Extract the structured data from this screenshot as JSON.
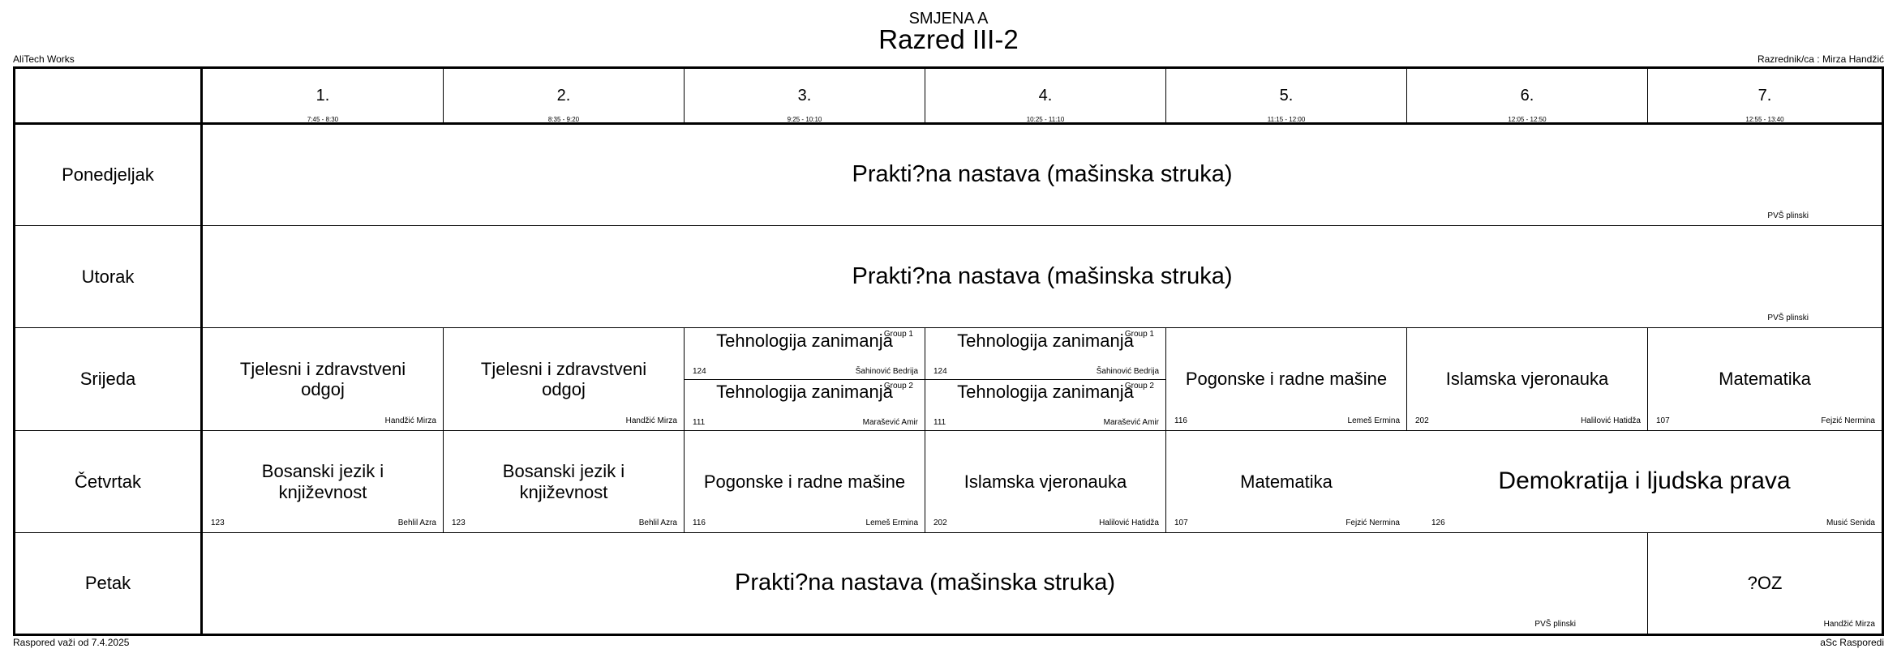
{
  "header": {
    "shift": "SMJENA A",
    "class_name": "Razred III-2",
    "school": "AliTech Works",
    "class_teacher": "Razrednik/ca : Mirza Handžić"
  },
  "footer": {
    "valid_from": "Raspored važi od 7.4.2025",
    "generator": "aSc Rasporedi"
  },
  "periods": [
    {
      "num": "1.",
      "time": "7:45 - 8:30"
    },
    {
      "num": "2.",
      "time": "8:35 - 9:20"
    },
    {
      "num": "3.",
      "time": "9:25 - 10:10"
    },
    {
      "num": "4.",
      "time": "10:25 - 11:10"
    },
    {
      "num": "5.",
      "time": "11:15 - 12:00"
    },
    {
      "num": "6.",
      "time": "12:05 - 12:50"
    },
    {
      "num": "7.",
      "time": "12:55 - 13:40"
    }
  ],
  "days": [
    "Ponedjeljak",
    "Utorak",
    "Srijeda",
    "Četvrtak",
    "Petak"
  ],
  "lessons": {
    "mon": {
      "subject": "Prakti?na nastava (mašinska struka)",
      "teacher": "PVŠ plinski"
    },
    "tue": {
      "subject": "Prakti?na nastava (mašinska struka)",
      "teacher": "PVŠ plinski"
    },
    "wed": {
      "p1": {
        "subject": "Tjelesni i zdravstveni odgoj",
        "teacher": "Handžić Mirza"
      },
      "p2": {
        "subject": "Tjelesni i zdravstveni odgoj",
        "teacher": "Handžić Mirza"
      },
      "p3g1": {
        "subject": "Tehnologija zanimanja",
        "group": "Group 1",
        "room": "124",
        "teacher": "Šahinović Bedrija"
      },
      "p3g2": {
        "subject": "Tehnologija zanimanja",
        "group": "Group 2",
        "room": "111",
        "teacher": "Marašević Amir"
      },
      "p4g1": {
        "subject": "Tehnologija zanimanja",
        "group": "Group 1",
        "room": "124",
        "teacher": "Šahinović Bedrija"
      },
      "p4g2": {
        "subject": "Tehnologija zanimanja",
        "group": "Group 2",
        "room": "111",
        "teacher": "Marašević Amir"
      },
      "p5": {
        "subject": "Pogonske i radne mašine",
        "room": "116",
        "teacher": "Lemeš Ermina"
      },
      "p6": {
        "subject": "Islamska vjeronauka",
        "room": "202",
        "teacher": "Halilović Hatidža"
      },
      "p7": {
        "subject": "Matematika",
        "room": "107",
        "teacher": "Fejzić Nermina"
      }
    },
    "thu": {
      "p1": {
        "subject": "Bosanski jezik i književnost",
        "room": "123",
        "teacher": "Behlil Azra"
      },
      "p2": {
        "subject": "Bosanski jezik i književnost",
        "room": "123",
        "teacher": "Behlil Azra"
      },
      "p3": {
        "subject": "Pogonske i radne mašine",
        "room": "116",
        "teacher": "Lemeš Ermina"
      },
      "p4": {
        "subject": "Islamska vjeronauka",
        "room": "202",
        "teacher": "Halilović Hatidža"
      },
      "p5": {
        "subject": "Matematika",
        "room": "107",
        "teacher": "Fejzić Nermina"
      },
      "p67": {
        "subject": "Demokratija i ljudska prava",
        "room": "126",
        "teacher": "Musić Senida"
      }
    },
    "fri": {
      "p1_6": {
        "subject": "Prakti?na nastava (mašinska struka)",
        "teacher": "PVŠ plinski"
      },
      "p7": {
        "subject": "?OZ",
        "teacher": "Handžić Mirza"
      }
    }
  }
}
